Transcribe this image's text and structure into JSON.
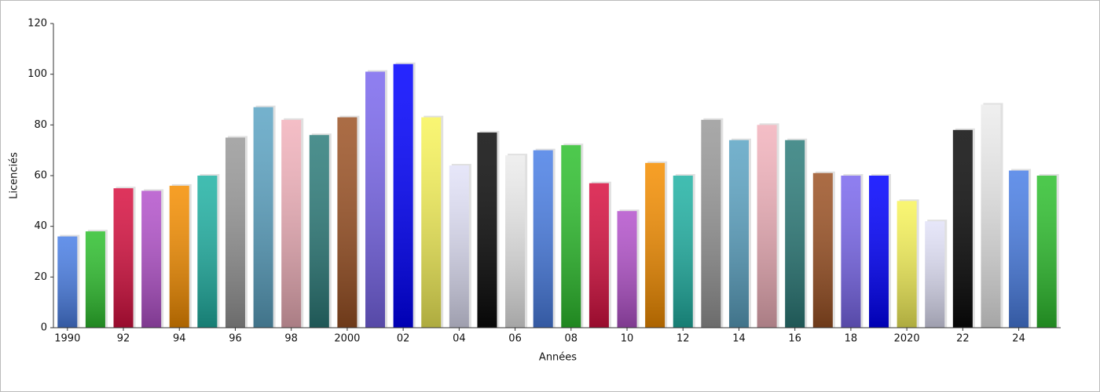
{
  "chart_data": {
    "type": "bar",
    "x_label": "Années",
    "y_label": "Licenciés",
    "categories": [
      "1990",
      null,
      "92",
      null,
      "94",
      null,
      "96",
      null,
      "98",
      null,
      "2000",
      null,
      "02",
      null,
      "04",
      null,
      "06",
      null,
      "08",
      null,
      "10",
      null,
      "12",
      null,
      "14",
      null,
      "16",
      null,
      "18",
      null,
      "2020",
      null,
      "22",
      null,
      "24",
      null
    ],
    "values": [
      36,
      38,
      55,
      54,
      56,
      60,
      75,
      87,
      82,
      76,
      83,
      101,
      104,
      83,
      64,
      77,
      68,
      70,
      72,
      57,
      46,
      65,
      60,
      82,
      74,
      80,
      74,
      61,
      60,
      60,
      50,
      42,
      78,
      88,
      62,
      60
    ],
    "palette": [
      "#4a7fe6",
      "#2ec02e",
      "#d81040",
      "#b452cc",
      "#f58e00",
      "#20b2a4",
      "#999999",
      "#5ca4c4",
      "#f2b2bc",
      "#2c7c7a",
      "#9c5224",
      "#7b68ee",
      "#0000ff",
      "#f8f45a",
      "#e2e2f8",
      "#0a0a0a",
      "#ececec"
    ],
    "ylim": [
      0,
      120
    ],
    "yticks": [
      0,
      20,
      40,
      60,
      80,
      100,
      120
    ]
  }
}
